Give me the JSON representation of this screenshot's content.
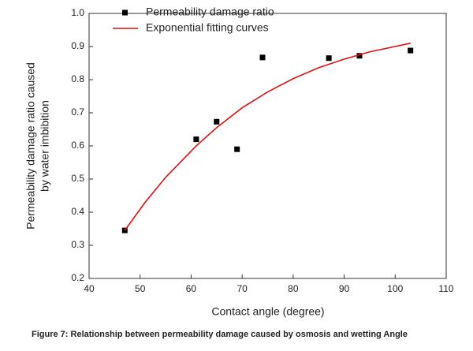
{
  "chart_data": {
    "type": "scatter",
    "xlabel": "Contact angle (degree)",
    "ylabel": [
      "Permeability damage ratio caused",
      "by water imbibition"
    ],
    "caption": "Figure 7: Relationship between permeability damage caused by osmosis and wetting Angle",
    "xlim": [
      40,
      110
    ],
    "xticks": [
      40,
      50,
      60,
      70,
      80,
      90,
      100,
      110
    ],
    "ylim": [
      0.2,
      1.0
    ],
    "yticks": [
      0.2,
      0.3,
      0.4,
      0.5,
      0.6,
      0.7,
      0.8,
      0.9,
      {
        "value": 1.0,
        "label": "1.0"
      }
    ],
    "series": [
      {
        "name": "Permeability damage ratio",
        "type": "scatter",
        "color": "#000000",
        "x": [
          47,
          61,
          65,
          69,
          74,
          87,
          93,
          103
        ],
        "values": [
          0.345,
          0.62,
          0.673,
          0.59,
          0.867,
          0.865,
          0.872,
          0.888
        ]
      },
      {
        "name": "Exponential fitting curves",
        "type": "line",
        "color": "#e01010",
        "x": [
          47,
          51,
          55,
          61,
          65,
          70,
          75,
          80,
          85,
          90,
          95,
          103
        ],
        "values": [
          0.345,
          0.43,
          0.505,
          0.6,
          0.655,
          0.715,
          0.763,
          0.803,
          0.836,
          0.862,
          0.884,
          0.91
        ]
      }
    ]
  }
}
